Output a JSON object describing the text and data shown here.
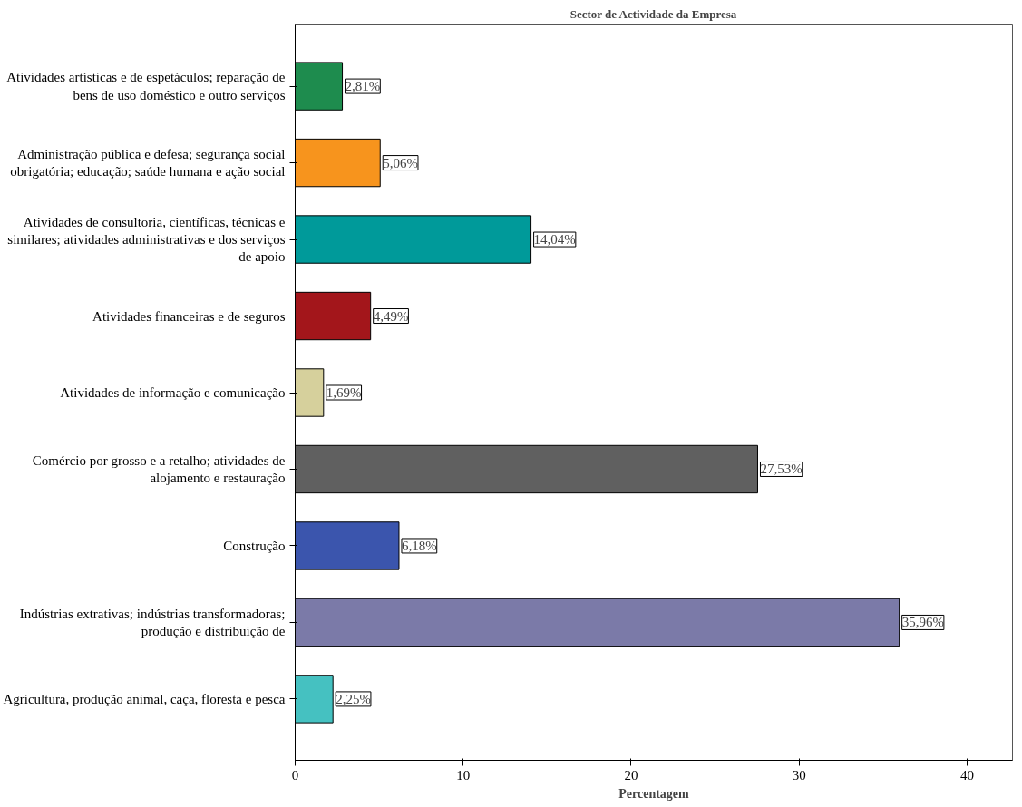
{
  "chart_data": {
    "type": "bar",
    "orientation": "horizontal",
    "title": "Sector de Actividade da Empresa",
    "xlabel": "Percentagem",
    "categories": [
      "Atividades artísticas e de espetáculos; reparação de bens de uso doméstico e outro serviços",
      "Administração pública e defesa; segurança social obrigatória; educação; saúde humana e ação social",
      "Atividades de consultoria, científicas, técnicas e similares; atividades administrativas e dos serviços de apoio",
      "Atividades financeiras e de seguros",
      "Atividades de informação e comunicação",
      "Comércio por grosso e a retalho; atividades de alojamento e restauração",
      "Construção",
      "Indústrias extrativas; indústrias transformadoras; produção e distribuição de",
      "Agricultura, produção animal, caça, floresta e pesca"
    ],
    "values": [
      2.81,
      5.06,
      14.04,
      4.49,
      1.69,
      27.53,
      6.18,
      35.96,
      2.25
    ],
    "value_labels": [
      "2,81%",
      "5,06%",
      "14,04%",
      "4,49%",
      "1,69%",
      "27,53%",
      "6,18%",
      "35,96%",
      "2,25%"
    ],
    "colors": [
      "#1e8c4e",
      "#f7941d",
      "#009a9a",
      "#a3161b",
      "#d6d09c",
      "#606060",
      "#3b55ad",
      "#7b7aa8",
      "#45c1c1"
    ],
    "xlim": [
      0,
      42.7
    ],
    "xticks": [
      0,
      10,
      20,
      30,
      40
    ],
    "grid": false
  }
}
